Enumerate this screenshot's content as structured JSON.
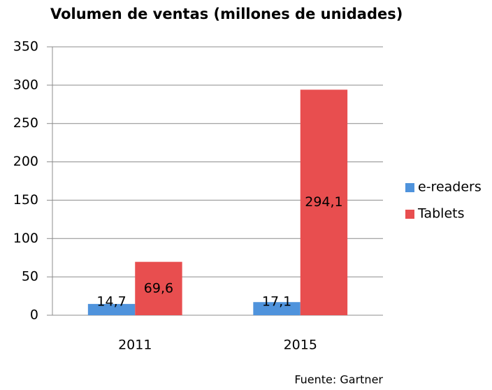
{
  "chart_data": {
    "type": "bar",
    "title": "Volumen de ventas (millones de unidades)",
    "categories": [
      "2011",
      "2015"
    ],
    "series": [
      {
        "name": "e-readers",
        "color": "#4f93dc",
        "values": [
          14.7,
          17.1
        ],
        "value_labels": [
          "14,7",
          "17,1"
        ]
      },
      {
        "name": "Tablets",
        "color": "#e84e4f",
        "values": [
          69.6,
          294.1
        ],
        "value_labels": [
          "69,6",
          "294,1"
        ]
      }
    ],
    "ylim": [
      0,
      350
    ],
    "yticks": [
      0,
      50,
      100,
      150,
      200,
      250,
      300,
      350
    ],
    "grid": true,
    "legend": "right",
    "note": "Fuente: Gartner"
  }
}
